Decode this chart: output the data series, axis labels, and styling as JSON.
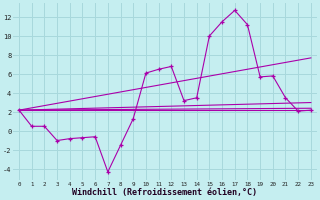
{
  "background_color": "#c5eef0",
  "grid_color": "#a8d8dc",
  "line_color": "#aa00aa",
  "xlabel": "Windchill (Refroidissement éolien,°C)",
  "xlabel_fontsize": 6.0,
  "xlim": [
    -0.5,
    23.5
  ],
  "ylim": [
    -5.2,
    13.5
  ],
  "yticks": [
    -4,
    -2,
    0,
    2,
    4,
    6,
    8,
    10,
    12
  ],
  "xticks": [
    0,
    1,
    2,
    3,
    4,
    5,
    6,
    7,
    8,
    9,
    10,
    11,
    12,
    13,
    14,
    15,
    16,
    17,
    18,
    19,
    20,
    21,
    22,
    23
  ],
  "series1_x": [
    0,
    1,
    2,
    3,
    4,
    5,
    6,
    7,
    8,
    9,
    10,
    11,
    12,
    13,
    14,
    15,
    16,
    17,
    18,
    19,
    20,
    21,
    22,
    23
  ],
  "series1_y": [
    2.2,
    0.5,
    0.5,
    -1.0,
    -0.8,
    -0.7,
    -0.6,
    -4.3,
    -1.5,
    1.3,
    6.1,
    6.5,
    6.8,
    3.2,
    3.5,
    10.0,
    11.5,
    12.7,
    11.2,
    5.7,
    5.8,
    3.5,
    2.1,
    2.2
  ],
  "regline1_x": [
    0,
    23
  ],
  "regline1_y": [
    2.2,
    2.2
  ],
  "regline2_x": [
    0,
    23
  ],
  "regline2_y": [
    2.2,
    2.4
  ],
  "regline3_x": [
    0,
    23
  ],
  "regline3_y": [
    2.2,
    3.0
  ],
  "regline4_x": [
    0,
    23
  ],
  "regline4_y": [
    2.2,
    7.7
  ]
}
